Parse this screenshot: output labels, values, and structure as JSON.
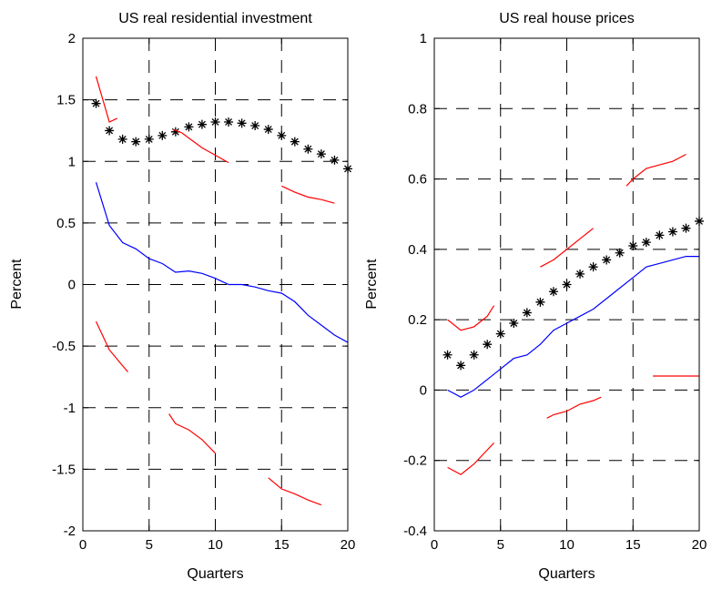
{
  "chart_data": [
    {
      "type": "line",
      "title": "US real residential investment",
      "xlabel": "Quarters",
      "ylabel": "Percent",
      "xlim": [
        0,
        20
      ],
      "ylim": [
        -2,
        2
      ],
      "xticks": [
        "0",
        "5",
        "10",
        "15",
        "20"
      ],
      "yticks": [
        "-2",
        "-1.5",
        "-1",
        "-0.5",
        "0",
        "0.5",
        "1",
        "1.5",
        "2"
      ],
      "xtick_values": [
        0,
        5,
        10,
        15,
        20
      ],
      "ytick_values": [
        -2,
        -1.5,
        -1,
        -0.5,
        0,
        0.5,
        1,
        1.5,
        2
      ],
      "grid": true,
      "colors": {
        "median": "#0000ff",
        "bands": "#ff0000",
        "markers": "#000000"
      },
      "series": [
        {
          "style": "markers",
          "color": "#000000",
          "x": [
            1,
            2,
            3,
            4,
            5,
            6,
            7,
            8,
            9,
            10,
            11,
            12,
            13,
            14,
            15,
            16,
            17,
            18,
            19,
            20
          ],
          "values": [
            1.47,
            1.25,
            1.18,
            1.16,
            1.18,
            1.21,
            1.24,
            1.28,
            1.3,
            1.32,
            1.32,
            1.31,
            1.29,
            1.26,
            1.21,
            1.16,
            1.1,
            1.06,
            1.01,
            0.94
          ]
        },
        {
          "style": "line",
          "color": "#0000ff",
          "x": [
            1,
            2,
            3,
            4,
            5,
            6,
            7,
            8,
            9,
            10,
            11,
            12,
            13,
            14,
            15,
            16,
            17,
            18,
            19,
            20
          ],
          "values": [
            0.83,
            0.48,
            0.34,
            0.29,
            0.21,
            0.17,
            0.1,
            0.11,
            0.09,
            0.05,
            0.0,
            0.0,
            -0.02,
            -0.05,
            -0.07,
            -0.14,
            -0.25,
            -0.33,
            -0.41,
            -0.47
          ]
        },
        {
          "style": "line",
          "color": "#ff0000",
          "x": [
            1,
            2,
            2.6
          ],
          "values": [
            1.69,
            1.32,
            1.35
          ]
        },
        {
          "style": "line",
          "color": "#ff0000",
          "x": [
            6.8,
            7.5,
            8,
            9,
            10,
            11
          ],
          "values": [
            1.26,
            1.23,
            1.19,
            1.11,
            1.05,
            0.99
          ]
        },
        {
          "style": "line",
          "color": "#ff0000",
          "x": [
            15,
            16,
            17,
            18,
            19
          ],
          "values": [
            0.8,
            0.75,
            0.71,
            0.69,
            0.66
          ]
        },
        {
          "style": "line",
          "color": "#ff0000",
          "x": [
            1,
            2,
            3,
            3.4
          ],
          "values": [
            -0.3,
            -0.53,
            -0.66,
            -0.71
          ]
        },
        {
          "style": "line",
          "color": "#ff0000",
          "x": [
            6.5,
            7,
            8,
            9,
            10
          ],
          "values": [
            -1.05,
            -1.13,
            -1.18,
            -1.26,
            -1.37
          ]
        },
        {
          "style": "line",
          "color": "#ff0000",
          "x": [
            14,
            15,
            16,
            17,
            18
          ],
          "values": [
            -1.57,
            -1.66,
            -1.7,
            -1.75,
            -1.79
          ]
        }
      ]
    },
    {
      "type": "line",
      "title": "US real house prices",
      "xlabel": "Quarters",
      "ylabel": "Percent",
      "xlim": [
        0,
        20
      ],
      "ylim": [
        -0.4,
        1
      ],
      "xticks": [
        "0",
        "5",
        "10",
        "15",
        "20"
      ],
      "yticks": [
        "-0.4",
        "-0.2",
        "0",
        "0.2",
        "0.4",
        "0.6",
        "0.8",
        "1"
      ],
      "xtick_values": [
        0,
        5,
        10,
        15,
        20
      ],
      "ytick_values": [
        -0.4,
        -0.2,
        0,
        0.2,
        0.4,
        0.6,
        0.8,
        1
      ],
      "grid": true,
      "colors": {
        "median": "#0000ff",
        "bands": "#ff0000",
        "markers": "#000000"
      },
      "series": [
        {
          "style": "markers",
          "color": "#000000",
          "x": [
            1,
            2,
            3,
            4,
            5,
            6,
            7,
            8,
            9,
            10,
            11,
            12,
            13,
            14,
            15,
            16,
            17,
            18,
            19,
            20
          ],
          "values": [
            0.1,
            0.07,
            0.1,
            0.13,
            0.16,
            0.19,
            0.22,
            0.25,
            0.28,
            0.3,
            0.33,
            0.35,
            0.37,
            0.39,
            0.41,
            0.42,
            0.44,
            0.45,
            0.46,
            0.48
          ]
        },
        {
          "style": "line",
          "color": "#0000ff",
          "x": [
            1,
            2,
            3,
            4,
            5,
            6,
            7,
            8,
            9,
            10,
            11,
            12,
            13,
            14,
            15,
            16,
            17,
            18,
            19,
            20
          ],
          "values": [
            0.0,
            -0.02,
            0.0,
            0.03,
            0.06,
            0.09,
            0.1,
            0.13,
            0.17,
            0.19,
            0.21,
            0.23,
            0.26,
            0.29,
            0.32,
            0.35,
            0.36,
            0.37,
            0.38,
            0.38
          ]
        },
        {
          "style": "line",
          "color": "#ff0000",
          "x": [
            1,
            2,
            3,
            4,
            4.5
          ],
          "values": [
            0.2,
            0.17,
            0.18,
            0.21,
            0.24
          ]
        },
        {
          "style": "line",
          "color": "#ff0000",
          "x": [
            8,
            9,
            10,
            11,
            12
          ],
          "values": [
            0.35,
            0.37,
            0.4,
            0.43,
            0.46
          ]
        },
        {
          "style": "line",
          "color": "#ff0000",
          "x": [
            14.5,
            15,
            16,
            17,
            18,
            19
          ],
          "values": [
            0.58,
            0.6,
            0.63,
            0.64,
            0.65,
            0.67
          ]
        },
        {
          "style": "line",
          "color": "#ff0000",
          "x": [
            1,
            2,
            3,
            4,
            4.5
          ],
          "values": [
            -0.22,
            -0.24,
            -0.21,
            -0.17,
            -0.15
          ]
        },
        {
          "style": "line",
          "color": "#ff0000",
          "x": [
            8.5,
            9,
            10,
            11,
            12,
            12.6
          ],
          "values": [
            -0.08,
            -0.07,
            -0.06,
            -0.04,
            -0.03,
            -0.02
          ]
        },
        {
          "style": "line",
          "color": "#ff0000",
          "x": [
            16.5,
            17,
            18,
            19,
            20
          ],
          "values": [
            0.04,
            0.04,
            0.04,
            0.04,
            0.04
          ]
        }
      ]
    }
  ]
}
